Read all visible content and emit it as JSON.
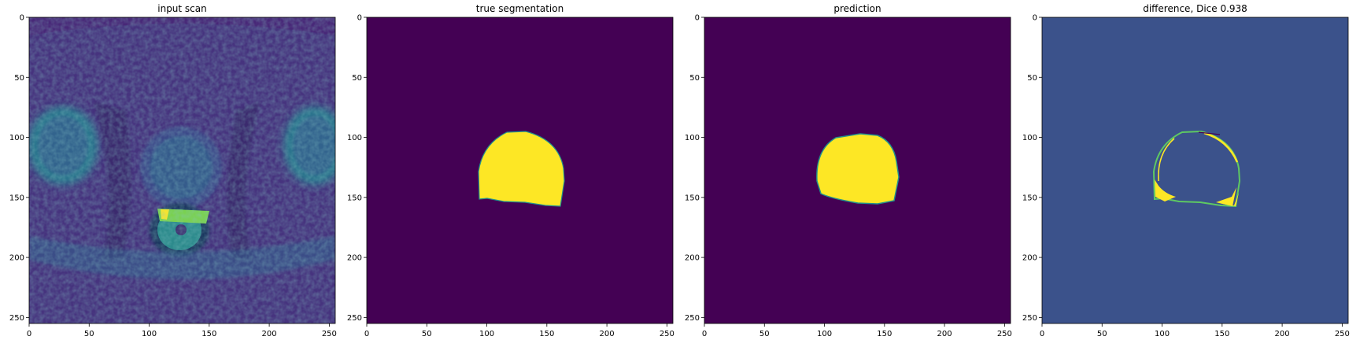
{
  "chart_data": [
    {
      "type": "heatmap",
      "title": "input scan",
      "image": "MRI axial pelvic slice (viridis colormap)",
      "xlim": [
        0,
        255
      ],
      "ylim": [
        255,
        0
      ],
      "xticks": [
        0,
        50,
        100,
        150,
        200,
        250
      ],
      "yticks": [
        0,
        50,
        100,
        150,
        200,
        250
      ],
      "colormap": "viridis"
    },
    {
      "type": "heatmap",
      "title": "true segmentation",
      "image": "binary mask",
      "xlim": [
        0,
        255
      ],
      "ylim": [
        255,
        0
      ],
      "xticks": [
        0,
        50,
        100,
        150,
        200,
        250
      ],
      "yticks": [
        0,
        50,
        100,
        150,
        200,
        250
      ],
      "colormap": "viridis"
    },
    {
      "type": "heatmap",
      "title": "prediction",
      "image": "binary mask",
      "xlim": [
        0,
        255
      ],
      "ylim": [
        255,
        0
      ],
      "xticks": [
        0,
        50,
        100,
        150,
        200,
        250
      ],
      "yticks": [
        0,
        50,
        100,
        150,
        200,
        250
      ],
      "colormap": "viridis"
    },
    {
      "type": "heatmap",
      "title": "difference, Dice 0.938",
      "image": "difference map",
      "xlim": [
        0,
        255
      ],
      "ylim": [
        255,
        0
      ],
      "xticks": [
        0,
        50,
        100,
        150,
        200,
        250
      ],
      "yticks": [
        0,
        50,
        100,
        150,
        200,
        250
      ],
      "colormap": "viridis"
    }
  ],
  "colors": {
    "viridis_low": "#440154",
    "viridis_mid_low": "#3b528b",
    "viridis_mid": "#21918c",
    "viridis_mid_high": "#5ec962",
    "viridis_high": "#fde725",
    "difference_background": "#3b528b",
    "scan_background": "#482878"
  }
}
